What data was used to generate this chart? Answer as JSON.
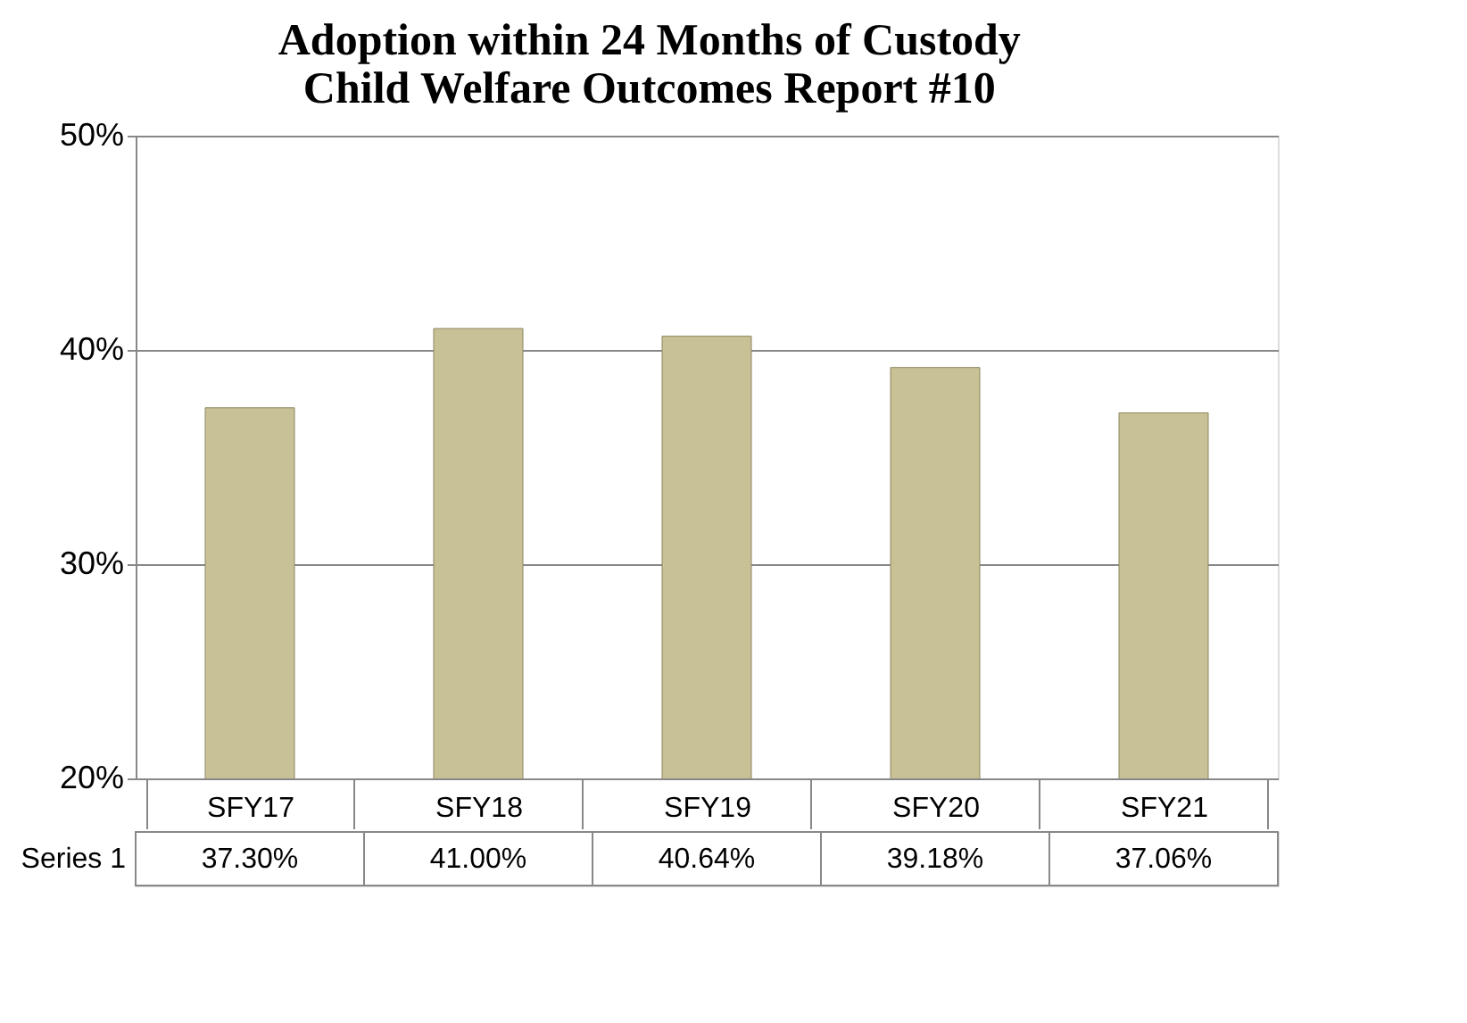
{
  "chart_data": {
    "type": "bar",
    "title": "Adoption within 24 Months of Custody\nChild Welfare Outcomes Report #10",
    "categories": [
      "SFY17",
      "SFY18",
      "SFY19",
      "SFY20",
      "SFY21"
    ],
    "series": [
      {
        "name": "Series 1",
        "color": "#c9c196",
        "values": [
          37.3,
          41.0,
          40.64,
          39.18,
          37.06
        ],
        "value_labels": [
          "37.30%",
          "41.00%",
          "40.64%",
          "39.18%",
          "37.06%"
        ]
      }
    ],
    "ylim": [
      20,
      50
    ],
    "yticks": [
      {
        "value": 20,
        "label": "20%"
      },
      {
        "value": 30,
        "label": "30%"
      },
      {
        "value": 40,
        "label": "40%"
      },
      {
        "value": 50,
        "label": "50%"
      }
    ],
    "grid": "y"
  }
}
